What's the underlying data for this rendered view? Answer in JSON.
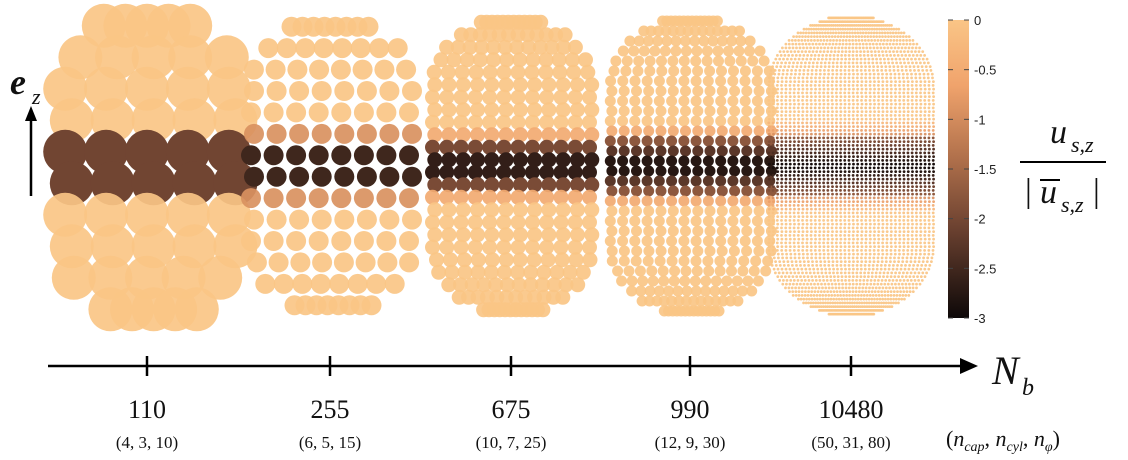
{
  "colors": {
    "light": "#f9c583",
    "dark": "#120a08",
    "axis": "#000000"
  },
  "axis": {
    "label_main": "N",
    "label_sub": "b",
    "ticks": [
      "110",
      "255",
      "675",
      "990",
      "10480"
    ],
    "tuples": [
      "(4, 3, 10)",
      "(6, 5, 15)",
      "(10, 7, 25)",
      "(12, 9, 30)",
      "(50, 31, 80)"
    ],
    "tuple_header": "(n_cap, n_cyl, n_φ)"
  },
  "ez_label": {
    "main": "e",
    "sub": "z"
  },
  "colorbar": {
    "ticks": [
      "0",
      "-0.5",
      "-1",
      "-1.5",
      "-2",
      "-2.5",
      "-3"
    ],
    "label_numerator": "u",
    "label_numerator_sub": "s,z",
    "label_denominator": "u",
    "label_denominator_sub": "s,z"
  },
  "capsules": [
    {
      "nb": "110",
      "n_cap": 4,
      "n_cyl": 3,
      "n_phi": 10
    },
    {
      "nb": "255",
      "n_cap": 6,
      "n_cyl": 5,
      "n_phi": 15
    },
    {
      "nb": "675",
      "n_cap": 10,
      "n_cyl": 7,
      "n_phi": 25
    },
    {
      "nb": "990",
      "n_cap": 12,
      "n_cyl": 9,
      "n_phi": 30
    },
    {
      "nb": "10480",
      "n_cap": 50,
      "n_cyl": 31,
      "n_phi": 80
    }
  ]
}
